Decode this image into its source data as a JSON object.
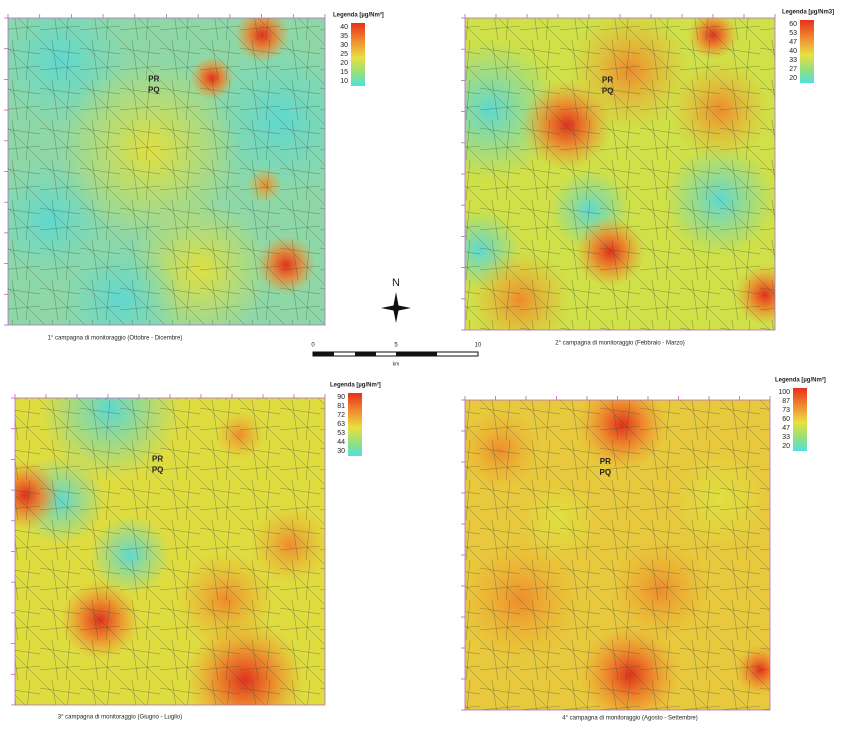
{
  "panels": [
    {
      "caption": "1° campagna di monitoraggio (Ottobre - Dicembre)",
      "legend_title": "Legenda [µg/Nm³]",
      "legend_values": [
        "40",
        "35",
        "30",
        "25",
        "20",
        "15",
        "10"
      ],
      "labels": [
        "PR",
        "PQ"
      ]
    },
    {
      "caption": "2° campagna di monitoraggio (Febbraio - Marzo)",
      "legend_title": "Legenda [µg/Nm3]",
      "legend_values": [
        "60",
        "53",
        "47",
        "40",
        "33",
        "27",
        "20"
      ],
      "labels": [
        "PR",
        "PQ"
      ]
    },
    {
      "caption": "3° campagna di monitoraggio (Giugno - Luglio)",
      "legend_title": "Legenda [µg/Nm³]",
      "legend_values": [
        "90",
        "81",
        "72",
        "63",
        "53",
        "44",
        "30"
      ],
      "labels": [
        "PR",
        "PQ"
      ]
    },
    {
      "caption": "4° campagna di monitoraggio (Agosto - Settembre)",
      "legend_title": "Legenda [µg/Nm³]",
      "legend_values": [
        "100",
        "87",
        "73",
        "60",
        "47",
        "33",
        "20"
      ],
      "labels": [
        "PR",
        "PQ"
      ]
    }
  ],
  "compass": "N",
  "scale_bar": {
    "ticks": [
      "0",
      "5",
      "10"
    ],
    "unit": "km"
  }
}
